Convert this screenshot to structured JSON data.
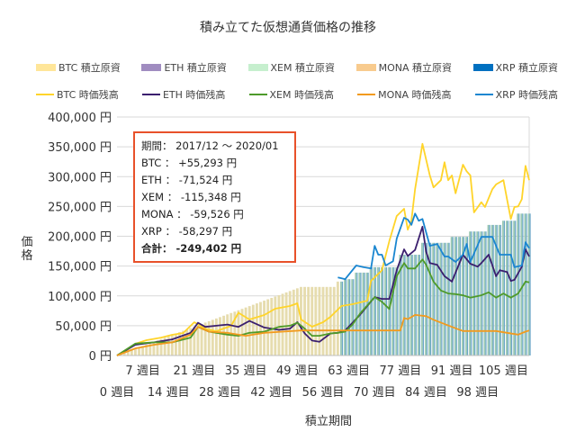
{
  "chart_data": {
    "type": "bar+line",
    "title": "積み立てた仮想通貨価格の推移",
    "xlabel": "積立期間",
    "ylabel": "価格",
    "ylim": [
      0,
      400000
    ],
    "yticks": [
      0,
      50000,
      100000,
      150000,
      200000,
      250000,
      300000,
      350000,
      400000
    ],
    "ytick_labels": [
      "0 円",
      "50,000 円",
      "100,000 円",
      "150,000 円",
      "200,000 円",
      "250,000 円",
      "300,000 円",
      "350,000 円",
      "400,000 円"
    ],
    "xlim": [
      0,
      112
    ],
    "xticks": [
      0,
      7,
      14,
      21,
      28,
      35,
      42,
      49,
      56,
      63,
      70,
      77,
      84,
      91,
      98,
      105
    ],
    "xtick_labels": [
      "0 週目",
      "7 週目",
      "14 週目",
      "21 週目",
      "28 週目",
      "35 週目",
      "42 週目",
      "49 週目",
      "56 週目",
      "63 週目",
      "70 週目",
      "77 週目",
      "84 週目",
      "91 週目",
      "98 週目",
      "105 週目"
    ],
    "grid": true,
    "legend_placement": "top",
    "legend": {
      "principal": [
        {
          "name": "BTC  積立原資",
          "color": "#ffe699"
        },
        {
          "name": "ETH  積立原資",
          "color": "#a08cc0"
        },
        {
          "name": "XEM  積立原資",
          "color": "#c6efce"
        },
        {
          "name": "MONA  積立原資",
          "color": "#f8cb8e"
        },
        {
          "name": "XRP  積立原資",
          "color": "#0070c0"
        }
      ],
      "value": [
        {
          "name": "BTC  時価残高",
          "color": "#ffd42a"
        },
        {
          "name": "ETH  時価残高",
          "color": "#3b1f6e"
        },
        {
          "name": "XEM  時価残高",
          "color": "#4e9a2a"
        },
        {
          "name": "MONA  時価残高",
          "color": "#f29a1e"
        },
        {
          "name": "XRP  時価残高",
          "color": "#1a86d0"
        }
      ]
    },
    "principal": {
      "weeks": [
        0,
        50,
        60,
        62,
        65,
        69,
        77,
        83,
        91,
        96,
        101,
        105,
        109,
        112
      ],
      "values": [
        0,
        115000,
        124000,
        128000,
        139000,
        148000,
        169000,
        189000,
        199000,
        208000,
        219000,
        226000,
        238000,
        238000
      ],
      "xrp_start_week": 60
    },
    "series": [
      {
        "name": "BTC  時価残高",
        "color": "#ffd42a",
        "x": [
          0,
          3,
          5,
          8,
          12,
          15,
          18,
          21,
          24,
          27,
          31,
          33,
          36,
          40,
          43,
          47,
          49,
          50,
          53,
          56,
          58,
          61,
          64,
          68,
          69,
          72,
          74,
          76,
          78,
          79,
          80,
          81,
          83,
          85,
          86,
          88,
          89,
          90,
          91,
          92,
          94,
          95,
          96,
          97,
          99,
          100,
          102,
          103,
          105,
          106,
          107,
          108,
          109,
          110,
          111,
          112
        ],
        "y": [
          0,
          10600,
          19600,
          25700,
          30000,
          34700,
          37700,
          55800,
          45000,
          40800,
          49800,
          71700,
          60400,
          67900,
          78500,
          83000,
          87500,
          60400,
          48300,
          55800,
          64900,
          83000,
          86000,
          92000,
          125000,
          143000,
          192000,
          234000,
          246000,
          211000,
          226000,
          279000,
          355000,
          302000,
          282000,
          294000,
          324000,
          294000,
          302000,
          272000,
          320000,
          309000,
          302000,
          240000,
          257000,
          249000,
          279000,
          287000,
          294000,
          261000,
          229000,
          249000,
          250000,
          262000,
          318000,
          294000
        ]
      },
      {
        "name": "ETH  時価残高",
        "color": "#3b1f6e",
        "x": [
          0,
          5,
          10,
          15,
          20,
          22,
          24,
          27,
          30,
          33,
          36,
          40,
          44,
          47,
          49,
          51,
          53,
          55,
          58,
          60,
          62,
          64,
          66,
          70,
          72,
          74,
          76,
          78,
          79,
          81,
          83,
          84,
          85,
          87,
          89,
          91,
          92,
          94,
          96,
          98,
          99,
          101,
          103,
          104,
          106,
          107,
          108,
          110,
          111,
          112
        ],
        "y": [
          0,
          18000,
          22000,
          27000,
          38000,
          55000,
          48000,
          50000,
          52000,
          48000,
          58000,
          47000,
          43000,
          45000,
          56000,
          37000,
          25000,
          23000,
          37000,
          38000,
          42000,
          55000,
          68000,
          98000,
          95000,
          95000,
          143000,
          178000,
          167000,
          177000,
          216000,
          174000,
          155000,
          152000,
          133000,
          124000,
          139000,
          169000,
          154000,
          149000,
          155000,
          169000,
          133000,
          143000,
          140000,
          125000,
          127000,
          149000,
          178000,
          166000
        ]
      },
      {
        "name": "XEM  時価残高",
        "color": "#4e9a2a",
        "x": [
          0,
          5,
          10,
          15,
          20,
          22,
          25,
          30,
          33,
          36,
          40,
          44,
          47,
          49,
          51,
          53,
          55,
          58,
          60,
          62,
          64,
          66,
          70,
          72,
          74,
          76,
          78,
          79,
          81,
          83,
          84,
          86,
          88,
          90,
          92,
          94,
          96,
          99,
          101,
          103,
          105,
          107,
          109,
          111,
          112
        ],
        "y": [
          0,
          20000,
          22000,
          22000,
          30000,
          48000,
          40000,
          35000,
          33000,
          38000,
          40000,
          48000,
          50000,
          55000,
          45000,
          33000,
          33000,
          37000,
          38000,
          40000,
          52000,
          70000,
          98000,
          90000,
          78000,
          133000,
          155000,
          146000,
          146000,
          161000,
          152000,
          124000,
          109000,
          104000,
          103000,
          101000,
          97000,
          101000,
          106000,
          97000,
          104000,
          97000,
          104000,
          124000,
          122600
        ]
      },
      {
        "name": "MONA  時価残高",
        "color": "#f29a1e",
        "x": [
          0,
          5,
          10,
          15,
          20,
          22,
          25,
          30,
          35,
          40,
          45,
          50,
          55,
          60,
          65,
          70,
          77,
          78,
          79,
          81,
          84,
          86,
          91,
          94,
          99,
          103,
          109,
          111,
          112
        ],
        "y": [
          0,
          12000,
          18000,
          22000,
          35000,
          48000,
          40000,
          38000,
          33000,
          38000,
          40000,
          42000,
          42000,
          42000,
          42000,
          42000,
          42000,
          63000,
          61000,
          68000,
          66000,
          60000,
          48000,
          41000,
          41000,
          41000,
          35000,
          40000,
          42000
        ]
      },
      {
        "name": "XRP  時価残高",
        "color": "#1a86d0",
        "x": [
          60,
          62,
          65,
          67,
          69,
          70,
          71,
          72,
          73,
          75,
          76,
          78,
          79,
          80,
          81,
          82,
          83,
          85,
          87,
          89,
          90,
          92,
          94,
          95,
          96,
          99,
          102,
          104,
          107,
          108,
          110,
          111,
          112
        ],
        "y": [
          131000,
          128000,
          151000,
          148000,
          146000,
          184000,
          169000,
          169000,
          151000,
          158000,
          196000,
          231000,
          228000,
          219000,
          238000,
          226000,
          229000,
          184000,
          187000,
          166000,
          166000,
          157000,
          169000,
          187000,
          157000,
          199000,
          199000,
          169000,
          169000,
          148000,
          151000,
          190000,
          180000
        ]
      }
    ]
  },
  "annotation": {
    "period": "期間： 2017/12 ～ 2020/01",
    "btc": "BTC ： +55,293 円",
    "eth": "ETH ： -71,524 円",
    "xem": "XEM ： -115,348 円",
    "mona": "MONA ： -59,526 円",
    "xrp": "XRP ： -58,297 円",
    "total": "合計： -249,402 円"
  }
}
